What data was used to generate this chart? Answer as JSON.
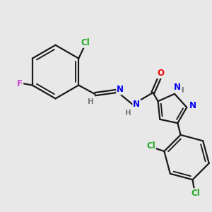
{
  "bg_color": "#e8e8e8",
  "bond_color": "#1a1a1a",
  "bond_width": 1.6,
  "atom_colors": {
    "C": "#1a1a1a",
    "H": "#777777",
    "N": "#0000ee",
    "O": "#ee0000",
    "Cl": "#22aa22",
    "F": "#cc44cc"
  },
  "font_size": 8.5,
  "font_size_small": 7.5
}
